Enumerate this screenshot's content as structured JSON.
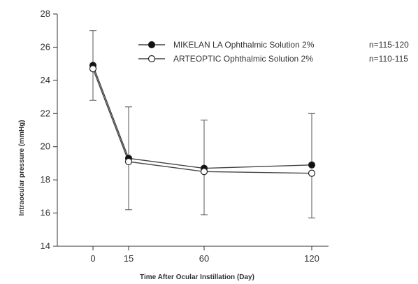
{
  "chart_data": {
    "type": "line",
    "title": "",
    "xlabel": "Time After Ocular Instillation (Day)",
    "ylabel": "Intraocular pressure (mmHg)",
    "x": [
      0,
      15,
      60,
      120
    ],
    "x_tick_labels": [
      "0",
      "15",
      "60",
      "120"
    ],
    "y_ticks": [
      14,
      16,
      18,
      20,
      22,
      24,
      26,
      28
    ],
    "y_tick_labels": [
      "14",
      "16",
      "18",
      "20",
      "22",
      "24",
      "26",
      "28"
    ],
    "ylim": [
      14,
      28
    ],
    "grid": false,
    "legend_position": "top-right",
    "series": [
      {
        "name": "MIKELAN LA Ophthalmic Solution 2%",
        "n_label": "n=115-120",
        "marker": "filled-circle",
        "values": [
          24.9,
          19.3,
          18.7,
          18.9
        ],
        "error_upper": [
          27.0,
          22.4,
          21.6,
          22.0
        ]
      },
      {
        "name": "ARTEOPTIC Ophthalmic Solution 2%",
        "n_label": "n=110-115",
        "marker": "open-circle",
        "values": [
          24.7,
          19.1,
          18.5,
          18.4
        ],
        "error_lower": [
          22.8,
          16.2,
          15.9,
          15.7
        ]
      }
    ]
  }
}
